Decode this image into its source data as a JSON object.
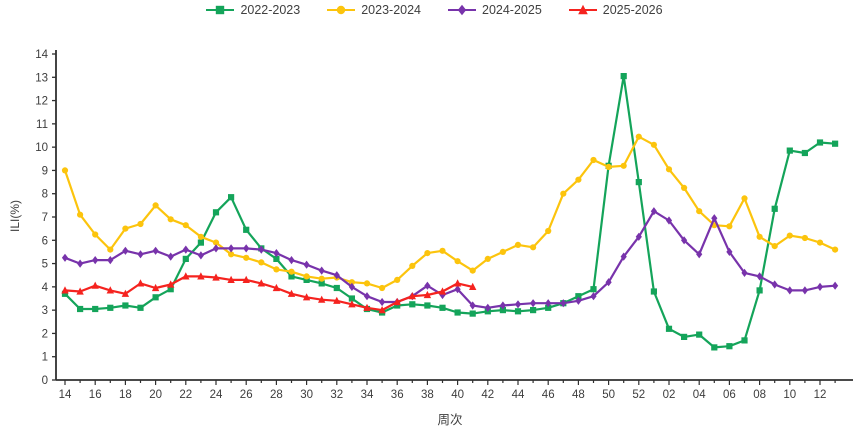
{
  "chart_data": {
    "type": "line",
    "xlabel": "周次",
    "ylabel": "ILI(%)",
    "ylim": [
      0,
      14
    ],
    "ytick_step": 1,
    "grid": false,
    "legend_position": "top",
    "axis_color": "#303030",
    "tick_label_color": "#3d3d3d",
    "x_label_every": 2,
    "x_weeks": [
      "14",
      "15",
      "16",
      "17",
      "18",
      "19",
      "20",
      "21",
      "22",
      "23",
      "24",
      "25",
      "26",
      "27",
      "28",
      "29",
      "30",
      "31",
      "32",
      "33",
      "34",
      "35",
      "36",
      "37",
      "38",
      "39",
      "40",
      "41",
      "42",
      "43",
      "44",
      "45",
      "46",
      "47",
      "48",
      "49",
      "50",
      "51",
      "52",
      "01",
      "02",
      "03",
      "04",
      "05",
      "06",
      "07",
      "08",
      "09",
      "10",
      "11",
      "12",
      "13"
    ],
    "series": [
      {
        "name": "2022-2023",
        "color": "#14a45a",
        "marker": "square",
        "values": [
          3.7,
          3.05,
          3.05,
          3.1,
          3.2,
          3.1,
          3.55,
          3.9,
          5.2,
          5.9,
          7.2,
          7.85,
          6.45,
          5.65,
          5.2,
          4.45,
          4.3,
          4.15,
          3.95,
          3.5,
          3.05,
          2.9,
          3.2,
          3.25,
          3.2,
          3.1,
          2.9,
          2.85,
          2.95,
          3.0,
          2.95,
          3.0,
          3.1,
          3.3,
          3.6,
          3.9,
          9.2,
          13.05,
          8.5,
          3.8,
          2.2,
          1.85,
          1.95,
          1.4,
          1.45,
          1.7,
          3.85,
          7.35,
          9.85,
          9.75,
          10.2,
          10.15
        ]
      },
      {
        "name": "2023-2024",
        "color": "#fcc40d",
        "marker": "circle",
        "values": [
          9.0,
          7.1,
          6.25,
          5.6,
          6.5,
          6.7,
          7.5,
          6.9,
          6.65,
          6.15,
          5.9,
          5.4,
          5.25,
          5.05,
          4.75,
          4.65,
          4.45,
          4.35,
          4.4,
          4.2,
          4.15,
          3.95,
          4.3,
          4.9,
          5.45,
          5.55,
          5.1,
          4.7,
          5.2,
          5.5,
          5.8,
          5.7,
          6.4,
          8.0,
          8.6,
          9.45,
          9.15,
          9.2,
          10.45,
          10.1,
          9.05,
          8.25,
          7.25,
          6.65,
          6.6,
          7.8,
          6.15,
          5.75,
          6.2,
          6.1,
          5.9,
          5.6
        ]
      },
      {
        "name": "2024-2025",
        "color": "#7833ab",
        "marker": "diamond",
        "values": [
          5.25,
          5.0,
          5.15,
          5.15,
          5.55,
          5.4,
          5.55,
          5.3,
          5.6,
          5.35,
          5.65,
          5.65,
          5.65,
          5.6,
          5.45,
          5.15,
          4.95,
          4.7,
          4.5,
          4.0,
          3.6,
          3.35,
          3.35,
          3.6,
          4.05,
          3.65,
          3.9,
          3.2,
          3.1,
          3.2,
          3.25,
          3.3,
          3.3,
          3.3,
          3.4,
          3.6,
          4.2,
          5.3,
          6.15,
          7.25,
          6.85,
          6.0,
          5.4,
          6.95,
          5.5,
          4.6,
          4.45,
          4.1,
          3.85,
          3.85,
          4.0,
          4.05
        ]
      },
      {
        "name": "2025-2026",
        "color": "#f5231f",
        "marker": "triangle",
        "values": [
          3.85,
          3.8,
          4.05,
          3.85,
          3.7,
          4.15,
          3.95,
          4.1,
          4.45,
          4.45,
          4.4,
          4.3,
          4.3,
          4.15,
          3.95,
          3.7,
          3.55,
          3.45,
          3.4,
          3.25,
          3.1,
          3.0,
          3.35,
          3.6,
          3.65,
          3.8,
          4.15,
          4.0,
          null,
          null,
          null,
          null,
          null,
          null,
          null,
          null,
          null,
          null,
          null,
          null,
          null,
          null,
          null,
          null,
          null,
          null,
          null,
          null,
          null,
          null,
          null,
          null
        ]
      }
    ]
  }
}
